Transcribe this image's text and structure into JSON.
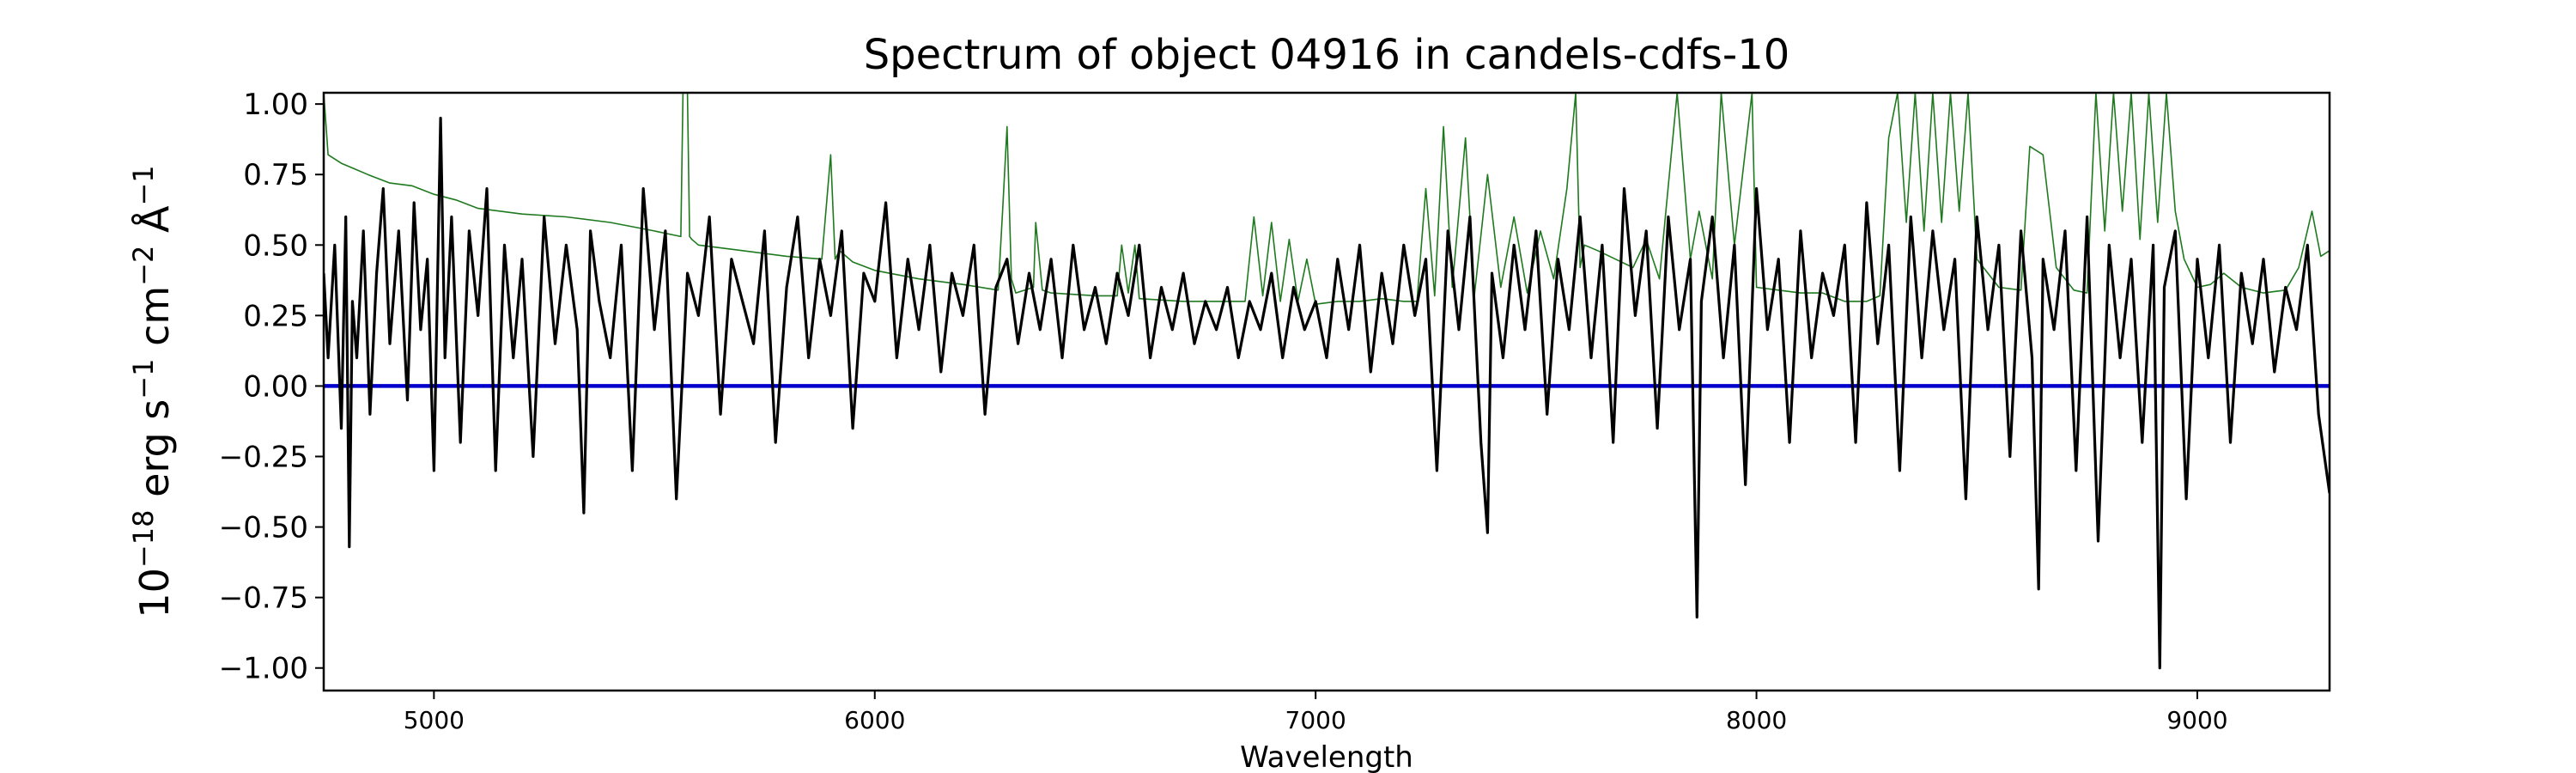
{
  "chart_data": {
    "type": "line",
    "title": "Spectrum of object 04916 in candels-cdfs-10",
    "xlabel": "Wavelength",
    "ylabel": {
      "base": "10",
      "exp18": "−18",
      "erg": " erg s",
      "exp1a": "−1",
      "cm": " cm",
      "exp2": "−2",
      "ang": " Å",
      "exp1b": "−1"
    },
    "xlim": [
      4750,
      9300
    ],
    "ylim": [
      -1.08,
      1.04
    ],
    "grid": false,
    "x_ticks": [
      {
        "value": 5000,
        "label": "5000"
      },
      {
        "value": 6000,
        "label": "6000"
      },
      {
        "value": 7000,
        "label": "7000"
      },
      {
        "value": 8000,
        "label": "8000"
      },
      {
        "value": 9000,
        "label": "9000"
      }
    ],
    "y_ticks": [
      {
        "value": 1.0,
        "label": "1.00"
      },
      {
        "value": 0.75,
        "label": "0.75"
      },
      {
        "value": 0.5,
        "label": "0.50"
      },
      {
        "value": 0.25,
        "label": "0.25"
      },
      {
        "value": 0.0,
        "label": "0.00"
      },
      {
        "value": -0.25,
        "label": "−0.25"
      },
      {
        "value": -0.5,
        "label": "−0.50"
      },
      {
        "value": -0.75,
        "label": "−0.75"
      },
      {
        "value": -1.0,
        "label": "−1.00"
      }
    ],
    "series": [
      {
        "color": "#1f7a1f",
        "x": [
          4750,
          4760,
          4790,
          4820,
          4850,
          4900,
          4950,
          5000,
          5050,
          5100,
          5200,
          5300,
          5400,
          5500,
          5560,
          5565,
          5575,
          5580,
          5585,
          5600,
          5700,
          5800,
          5880,
          5900,
          5910,
          5920,
          5950,
          6000,
          6100,
          6200,
          6280,
          6290,
          6300,
          6310,
          6320,
          6360,
          6365,
          6380,
          6400,
          6500,
          6550,
          6560,
          6575,
          6590,
          6600,
          6700,
          6800,
          6840,
          6860,
          6880,
          6900,
          6920,
          6940,
          6960,
          6980,
          7000,
          7050,
          7100,
          7150,
          7200,
          7230,
          7250,
          7270,
          7290,
          7310,
          7340,
          7360,
          7390,
          7420,
          7450,
          7480,
          7510,
          7540,
          7570,
          7590,
          7600,
          7610,
          7640,
          7680,
          7720,
          7750,
          7780,
          7820,
          7850,
          7870,
          7900,
          7920,
          7950,
          7990,
          8000,
          8050,
          8100,
          8150,
          8200,
          8250,
          8280,
          8300,
          8320,
          8340,
          8360,
          8380,
          8400,
          8420,
          8440,
          8460,
          8480,
          8500,
          8550,
          8600,
          8620,
          8650,
          8680,
          8720,
          8750,
          8770,
          8790,
          8810,
          8830,
          8850,
          8870,
          8890,
          8910,
          8930,
          8950,
          8970,
          9000,
          9030,
          9060,
          9100,
          9150,
          9200,
          9230,
          9260,
          9280,
          9300
        ],
        "y": [
          1.04,
          0.82,
          0.79,
          0.77,
          0.75,
          0.72,
          0.71,
          0.68,
          0.66,
          0.63,
          0.61,
          0.6,
          0.58,
          0.55,
          0.53,
          1.04,
          1.04,
          0.53,
          0.52,
          0.5,
          0.48,
          0.46,
          0.45,
          0.82,
          0.45,
          0.48,
          0.44,
          0.41,
          0.38,
          0.36,
          0.34,
          0.62,
          0.92,
          0.38,
          0.33,
          0.35,
          0.58,
          0.34,
          0.33,
          0.32,
          0.32,
          0.5,
          0.33,
          0.5,
          0.31,
          0.3,
          0.3,
          0.3,
          0.6,
          0.32,
          0.58,
          0.3,
          0.52,
          0.3,
          0.45,
          0.29,
          0.3,
          0.3,
          0.31,
          0.3,
          0.3,
          0.7,
          0.32,
          0.92,
          0.35,
          0.88,
          0.32,
          0.75,
          0.35,
          0.6,
          0.33,
          0.55,
          0.38,
          0.7,
          1.04,
          0.42,
          0.5,
          0.48,
          0.45,
          0.42,
          0.52,
          0.38,
          1.04,
          0.45,
          0.62,
          0.38,
          1.04,
          0.5,
          1.04,
          0.35,
          0.34,
          0.33,
          0.33,
          0.3,
          0.3,
          0.32,
          0.88,
          1.04,
          0.58,
          1.04,
          0.55,
          1.04,
          0.58,
          1.04,
          0.62,
          1.04,
          0.45,
          0.35,
          0.34,
          0.85,
          0.82,
          0.42,
          0.34,
          0.33,
          1.04,
          0.55,
          1.04,
          0.62,
          1.04,
          0.52,
          1.04,
          0.58,
          1.04,
          0.62,
          0.45,
          0.35,
          0.36,
          0.4,
          0.35,
          0.33,
          0.34,
          0.42,
          0.62,
          0.46,
          0.48
        ]
      },
      {
        "color": "#0000cc",
        "x": [
          4750,
          9300
        ],
        "y": [
          0.0,
          0.0
        ]
      },
      {
        "color": "#000000",
        "x": [
          4750,
          4760,
          4775,
          4790,
          4800,
          4808,
          4815,
          4825,
          4840,
          4855,
          4870,
          4885,
          4900,
          4920,
          4940,
          4955,
          4970,
          4985,
          5000,
          5015,
          5025,
          5040,
          5060,
          5080,
          5100,
          5120,
          5140,
          5160,
          5180,
          5200,
          5225,
          5250,
          5275,
          5300,
          5325,
          5340,
          5355,
          5375,
          5400,
          5425,
          5450,
          5475,
          5500,
          5525,
          5550,
          5575,
          5600,
          5625,
          5650,
          5675,
          5700,
          5725,
          5750,
          5775,
          5800,
          5825,
          5850,
          5875,
          5900,
          5925,
          5950,
          5975,
          6000,
          6025,
          6050,
          6075,
          6100,
          6125,
          6150,
          6175,
          6200,
          6225,
          6250,
          6275,
          6300,
          6325,
          6350,
          6375,
          6400,
          6425,
          6450,
          6475,
          6500,
          6525,
          6550,
          6575,
          6600,
          6625,
          6650,
          6675,
          6700,
          6725,
          6750,
          6775,
          6800,
          6825,
          6850,
          6875,
          6900,
          6925,
          6950,
          6975,
          7000,
          7025,
          7050,
          7075,
          7100,
          7125,
          7150,
          7175,
          7200,
          7225,
          7250,
          7275,
          7300,
          7325,
          7350,
          7375,
          7390,
          7400,
          7425,
          7450,
          7475,
          7500,
          7525,
          7550,
          7575,
          7600,
          7625,
          7650,
          7675,
          7700,
          7725,
          7750,
          7775,
          7800,
          7825,
          7850,
          7865,
          7875,
          7900,
          7925,
          7950,
          7975,
          8000,
          8025,
          8050,
          8075,
          8100,
          8125,
          8150,
          8175,
          8200,
          8225,
          8250,
          8275,
          8300,
          8325,
          8350,
          8375,
          8400,
          8425,
          8450,
          8475,
          8500,
          8525,
          8550,
          8575,
          8600,
          8625,
          8640,
          8650,
          8675,
          8700,
          8725,
          8750,
          8775,
          8800,
          8825,
          8850,
          8875,
          8900,
          8915,
          8925,
          8950,
          8975,
          9000,
          9025,
          9050,
          9075,
          9100,
          9125,
          9150,
          9175,
          9200,
          9225,
          9250,
          9275,
          9300
        ],
        "y": [
          0.4,
          0.1,
          0.5,
          -0.15,
          0.6,
          -0.57,
          0.3,
          0.1,
          0.55,
          -0.1,
          0.4,
          0.7,
          0.15,
          0.55,
          -0.05,
          0.65,
          0.2,
          0.45,
          -0.3,
          0.95,
          0.1,
          0.6,
          -0.2,
          0.55,
          0.25,
          0.7,
          -0.3,
          0.5,
          0.1,
          0.45,
          -0.25,
          0.6,
          0.15,
          0.5,
          0.2,
          -0.45,
          0.55,
          0.3,
          0.1,
          0.5,
          -0.3,
          0.7,
          0.2,
          0.55,
          -0.4,
          0.4,
          0.25,
          0.6,
          -0.1,
          0.45,
          0.3,
          0.15,
          0.55,
          -0.2,
          0.35,
          0.6,
          0.1,
          0.45,
          0.25,
          0.55,
          -0.15,
          0.4,
          0.3,
          0.65,
          0.1,
          0.45,
          0.2,
          0.5,
          0.05,
          0.4,
          0.25,
          0.5,
          -0.1,
          0.35,
          0.45,
          0.15,
          0.4,
          0.2,
          0.45,
          0.1,
          0.5,
          0.2,
          0.35,
          0.15,
          0.4,
          0.25,
          0.5,
          0.1,
          0.35,
          0.2,
          0.4,
          0.15,
          0.3,
          0.2,
          0.35,
          0.1,
          0.3,
          0.2,
          0.4,
          0.1,
          0.35,
          0.2,
          0.3,
          0.1,
          0.45,
          0.2,
          0.5,
          0.05,
          0.4,
          0.15,
          0.5,
          0.25,
          0.45,
          -0.3,
          0.55,
          0.2,
          0.6,
          -0.2,
          -0.52,
          0.4,
          0.1,
          0.5,
          0.2,
          0.55,
          -0.1,
          0.45,
          0.2,
          0.6,
          0.1,
          0.5,
          -0.2,
          0.7,
          0.25,
          0.55,
          -0.15,
          0.6,
          0.2,
          0.45,
          -0.82,
          0.3,
          0.6,
          0.1,
          0.5,
          -0.35,
          0.7,
          0.2,
          0.45,
          -0.2,
          0.55,
          0.1,
          0.4,
          0.25,
          0.5,
          -0.2,
          0.65,
          0.15,
          0.5,
          -0.3,
          0.6,
          0.1,
          0.55,
          0.2,
          0.45,
          -0.4,
          0.6,
          0.2,
          0.5,
          -0.25,
          0.55,
          0.1,
          -0.72,
          0.45,
          0.2,
          0.55,
          -0.3,
          0.6,
          -0.55,
          0.5,
          0.1,
          0.45,
          -0.2,
          0.5,
          -1.0,
          0.35,
          0.55,
          -0.4,
          0.45,
          0.1,
          0.5,
          -0.2,
          0.4,
          0.15,
          0.45,
          0.05,
          0.35,
          0.2,
          0.5,
          -0.1,
          -0.38
        ]
      }
    ]
  }
}
